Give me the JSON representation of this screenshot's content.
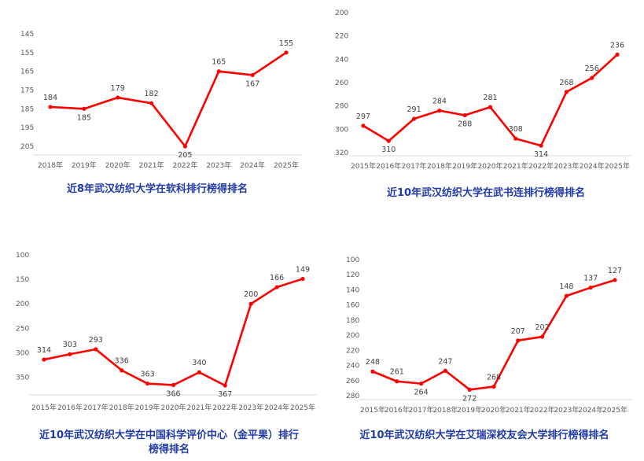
{
  "chart_data": [
    {
      "type": "line",
      "title": "近8年武汉纺织大学在软科排行榜得排名",
      "categories": [
        "2018年",
        "2019年",
        "2020年",
        "2021年",
        "2022年",
        "2023年",
        "2024年",
        "2025年"
      ],
      "series": [
        {
          "values": [
            184,
            185,
            179,
            182,
            205,
            165,
            167,
            155
          ]
        }
      ],
      "yticks": [
        "145",
        "155",
        "165",
        "175",
        "185",
        "195",
        "205"
      ],
      "ylim": [
        145,
        205
      ],
      "y_reversed": true,
      "grid": false,
      "color": "#ff0000"
    },
    {
      "type": "line",
      "title": "近10年武汉纺织大学在武书连排行榜得排名",
      "categories": [
        "2015年",
        "2016年",
        "2017年",
        "2018年",
        "2019年",
        "2020年",
        "2021年",
        "2022年",
        "2023年",
        "2024年",
        "2025年"
      ],
      "series": [
        {
          "values": [
            297,
            310,
            291,
            284,
            288,
            281,
            308,
            314,
            268,
            256,
            236
          ]
        }
      ],
      "yticks": [
        "200",
        "220",
        "240",
        "260",
        "280",
        "300",
        "320"
      ],
      "ylim": [
        200,
        320
      ],
      "y_reversed": true,
      "grid": false,
      "color": "#ff0000"
    },
    {
      "type": "line",
      "title": "近10年武汉纺织大学在中国科学评价中心（金平果）排行榜得排名",
      "title_lines": [
        "近10年武汉纺织大学在中国科学评价中心（金平果）排行",
        "榜得排名"
      ],
      "categories": [
        "2015年",
        "2016年",
        "2017年",
        "2018年",
        "2019年",
        "2020年",
        "2021年",
        "2022年",
        "2023年",
        "2024年",
        "2025年"
      ],
      "series": [
        {
          "values": [
            314,
            303,
            293,
            336,
            363,
            366,
            340,
            367,
            200,
            166,
            149
          ]
        }
      ],
      "yticks": [
        "100",
        "150",
        "200",
        "250",
        "300",
        "350"
      ],
      "ylim": [
        100,
        375
      ],
      "y_reversed": true,
      "grid": false,
      "color": "#ff0000"
    },
    {
      "type": "line",
      "title": "近10年武汉纺织大学在艾瑞深校友会大学排行榜得排名",
      "categories": [
        "2015年",
        "2016年",
        "2017年",
        "2018年",
        "2019年",
        "2020年",
        "2021年",
        "2022年",
        "2023年",
        "2024年",
        "2025年"
      ],
      "series": [
        {
          "values": [
            248,
            261,
            264,
            247,
            272,
            268,
            207,
            202,
            148,
            137,
            127
          ]
        }
      ],
      "yticks": [
        "100",
        "120",
        "140",
        "160",
        "180",
        "200",
        "220",
        "240",
        "260",
        "280"
      ],
      "ylim": [
        100,
        280
      ],
      "y_reversed": true,
      "grid": false,
      "color": "#ff0000"
    }
  ]
}
